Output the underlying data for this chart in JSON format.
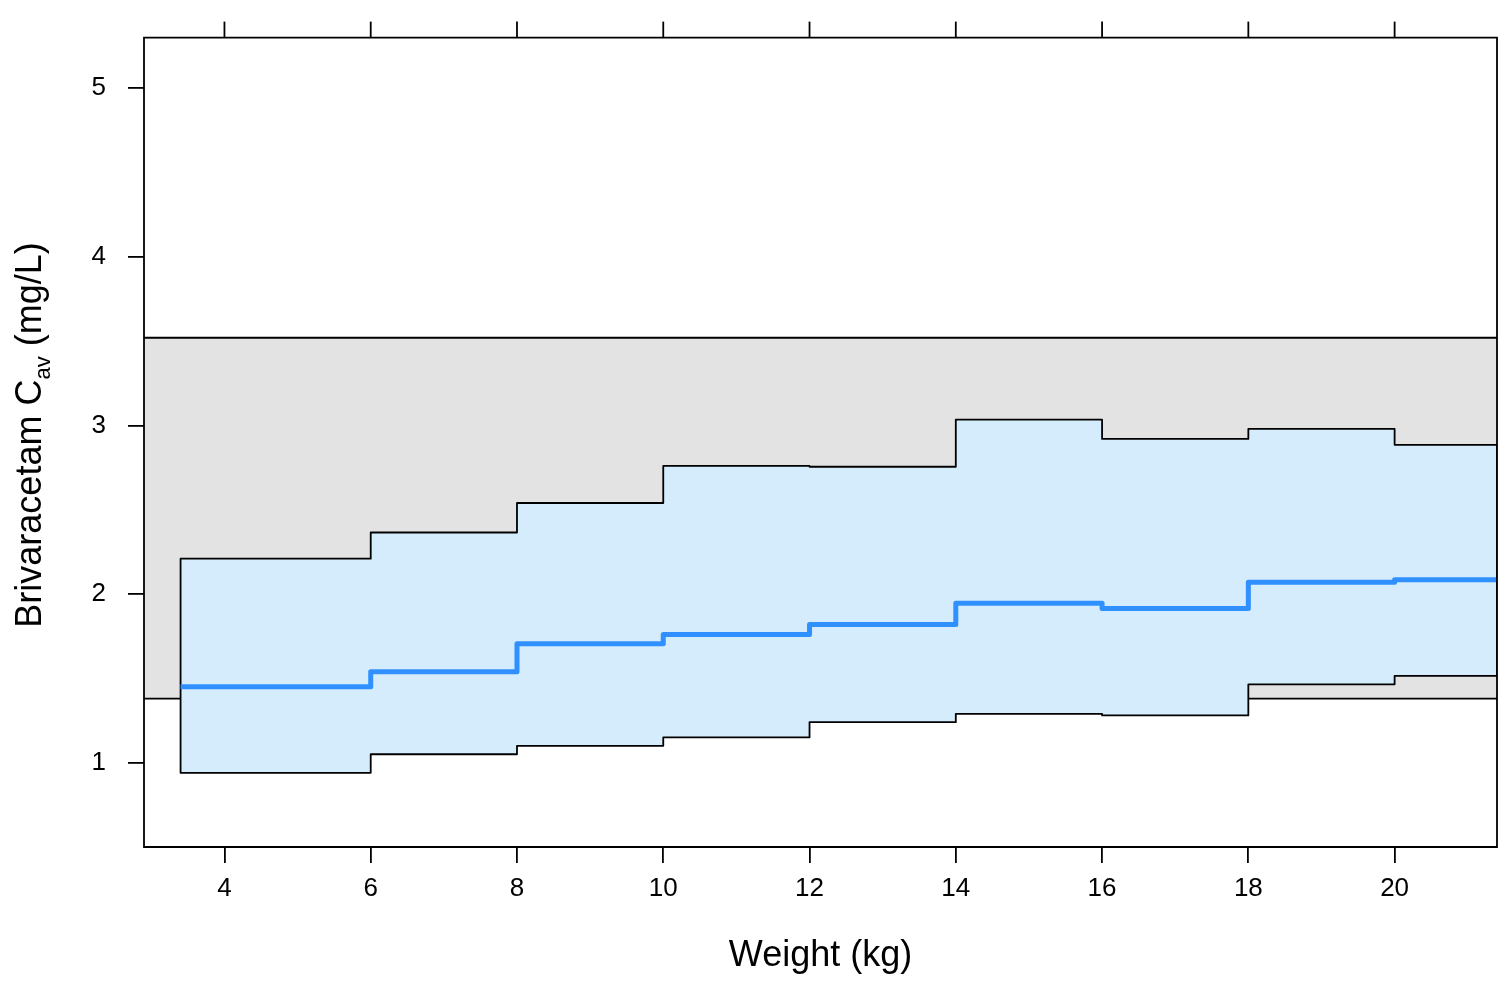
{
  "chart_data": {
    "type": "step",
    "xlabel": "Weight (kg)",
    "ylabel": "Brivaracetam C$_{av}$ (mg/L)",
    "x": [
      3.4,
      6,
      8,
      10,
      12,
      14,
      16,
      18,
      20,
      21.4
    ],
    "series": [
      {
        "color": "#3090ff",
        "values": [
          1.45,
          1.54,
          1.705,
          1.76,
          1.82,
          1.945,
          1.915,
          2.07,
          2.085,
          2.085
        ],
        "lower": [
          0.94,
          1.05,
          1.1,
          1.15,
          1.24,
          1.29,
          1.28,
          1.465,
          1.515,
          1.515
        ],
        "upper": [
          2.21,
          2.365,
          2.54,
          2.76,
          2.755,
          3.035,
          2.92,
          2.98,
          2.885,
          2.885
        ]
      }
    ],
    "bands": [
      {
        "axis": "y",
        "from": 1.38,
        "to": 3.52,
        "color": "#e3e3e3"
      }
    ],
    "ref_lines": [
      {
        "axis": "y",
        "value": 1.38,
        "color": "#000000"
      },
      {
        "axis": "y",
        "value": 3.52,
        "color": "#000000"
      }
    ],
    "xlim": [
      2.9,
      21.4
    ],
    "xticks": [
      4,
      6,
      8,
      10,
      12,
      14,
      16,
      18,
      20
    ],
    "ylim": [
      0.5,
      5.3
    ],
    "yticks": [
      1,
      2,
      3,
      4,
      5
    ],
    "grid": false,
    "legend": false
  }
}
